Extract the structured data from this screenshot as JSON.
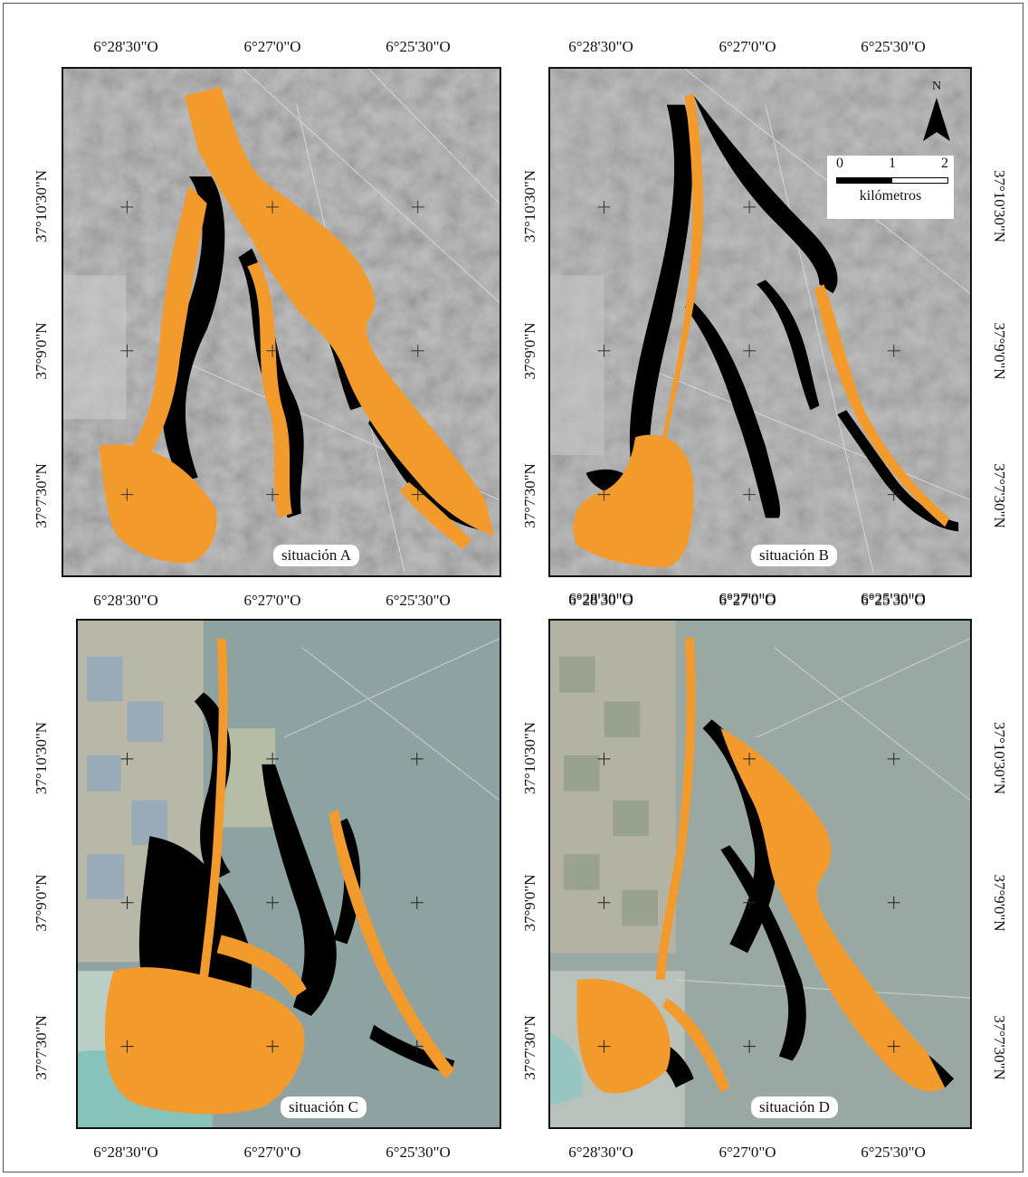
{
  "panels": [
    {
      "label": "situación A",
      "lon_top": [
        "6°28'30\"O",
        "6°27'0\"O",
        "6°25'30\"O"
      ],
      "lon_bottom": [
        "6°28'30\"O",
        "6°27'0\"O",
        "6°25'30\"O"
      ],
      "lat_left": [
        "37°10'30\"N",
        "37°9'0\"N",
        "37°7'30\"N"
      ]
    },
    {
      "label": "situación B",
      "lon_top": [
        "6°28'30\"O",
        "6°27'0\"O",
        "6°25'30\"O"
      ],
      "lon_bottom": [
        "6°28'30\"O",
        "6°27'0\"O",
        "6°25'30\"O"
      ],
      "lat_left": [
        "37°10'30\"N",
        "37°9'0\"N",
        "37°7'30\"N"
      ],
      "lat_right": [
        "37°10'30\"N",
        "37°9'0\"N",
        "37°7'30\"N"
      ]
    },
    {
      "label": "situación C",
      "lon_bottom": [
        "6°28'30\"O",
        "6°27'0\"O",
        "6°25'30\"O"
      ],
      "lat_left": [
        "37°10'30\"N",
        "37°9'0\"N",
        "37°7'30\"N"
      ]
    },
    {
      "label": "situación D",
      "lon_top": [
        "6°28'30\"O",
        "6°27'0\"O",
        "6°25'30\"O"
      ],
      "lon_bottom": [
        "6°28'30\"O",
        "6°27'0\"O",
        "6°25'30\"O"
      ],
      "lat_left": [
        "37°10'30\"N",
        "37°9'0\"N",
        "37°7'30\"N"
      ],
      "lat_right": [
        "37°10'30\"N",
        "37°9'0\"N",
        "37°7'30\"N"
      ]
    }
  ],
  "north_arrow": {
    "letter": "N",
    "icon": "north-arrow-icon"
  },
  "scale_bar": {
    "ticks": [
      "0",
      "1",
      "2"
    ],
    "unit": "kilómetros"
  },
  "colors": {
    "flood_orange": "#F39A2C",
    "dry_black": "#000000",
    "gray_terrain": "#A9A9A9",
    "color_terrain": "#8EA4A2"
  }
}
